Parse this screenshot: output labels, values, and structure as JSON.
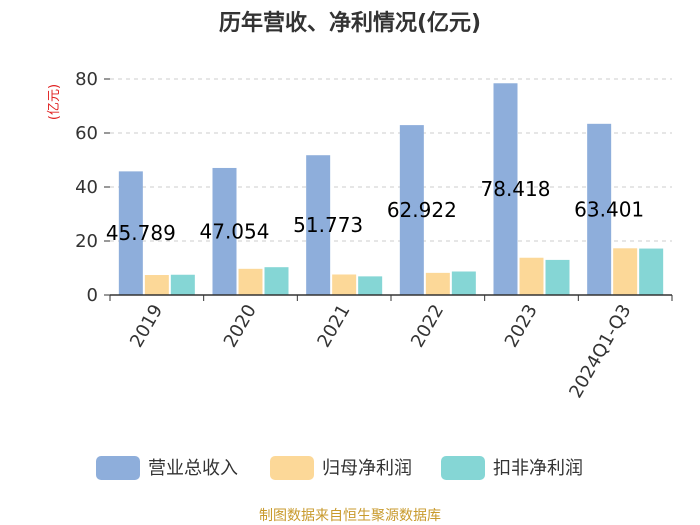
{
  "chart_data": {
    "type": "bar",
    "title": "历年营收、净利情况(亿元)",
    "unit_label": "(亿元)",
    "categories": [
      "2019",
      "2020",
      "2021",
      "2022",
      "2023",
      "2024Q1-Q3"
    ],
    "series": [
      {
        "name": "营业总收入",
        "values": [
          45.789,
          47.054,
          51.773,
          62.922,
          78.418,
          63.401
        ],
        "color": "#8eaedb"
      },
      {
        "name": "归母净利润",
        "values": [
          7.4,
          9.7,
          7.6,
          8.2,
          13.8,
          17.3
        ],
        "color": "#fcd898"
      },
      {
        "name": "扣非净利润",
        "values": [
          7.5,
          10.3,
          6.9,
          8.7,
          13.0,
          17.2
        ],
        "color": "#85d6d5"
      }
    ],
    "data_labels": [
      "45.789",
      "47.054",
      "51.773",
      "62.922",
      "78.418",
      "63.401"
    ],
    "yticks": [
      "0",
      "20",
      "40",
      "60",
      "80"
    ],
    "ylim": [
      0,
      80
    ],
    "grid": true,
    "legend_position": "bottom",
    "source": "制图数据来自恒生聚源数据库"
  }
}
